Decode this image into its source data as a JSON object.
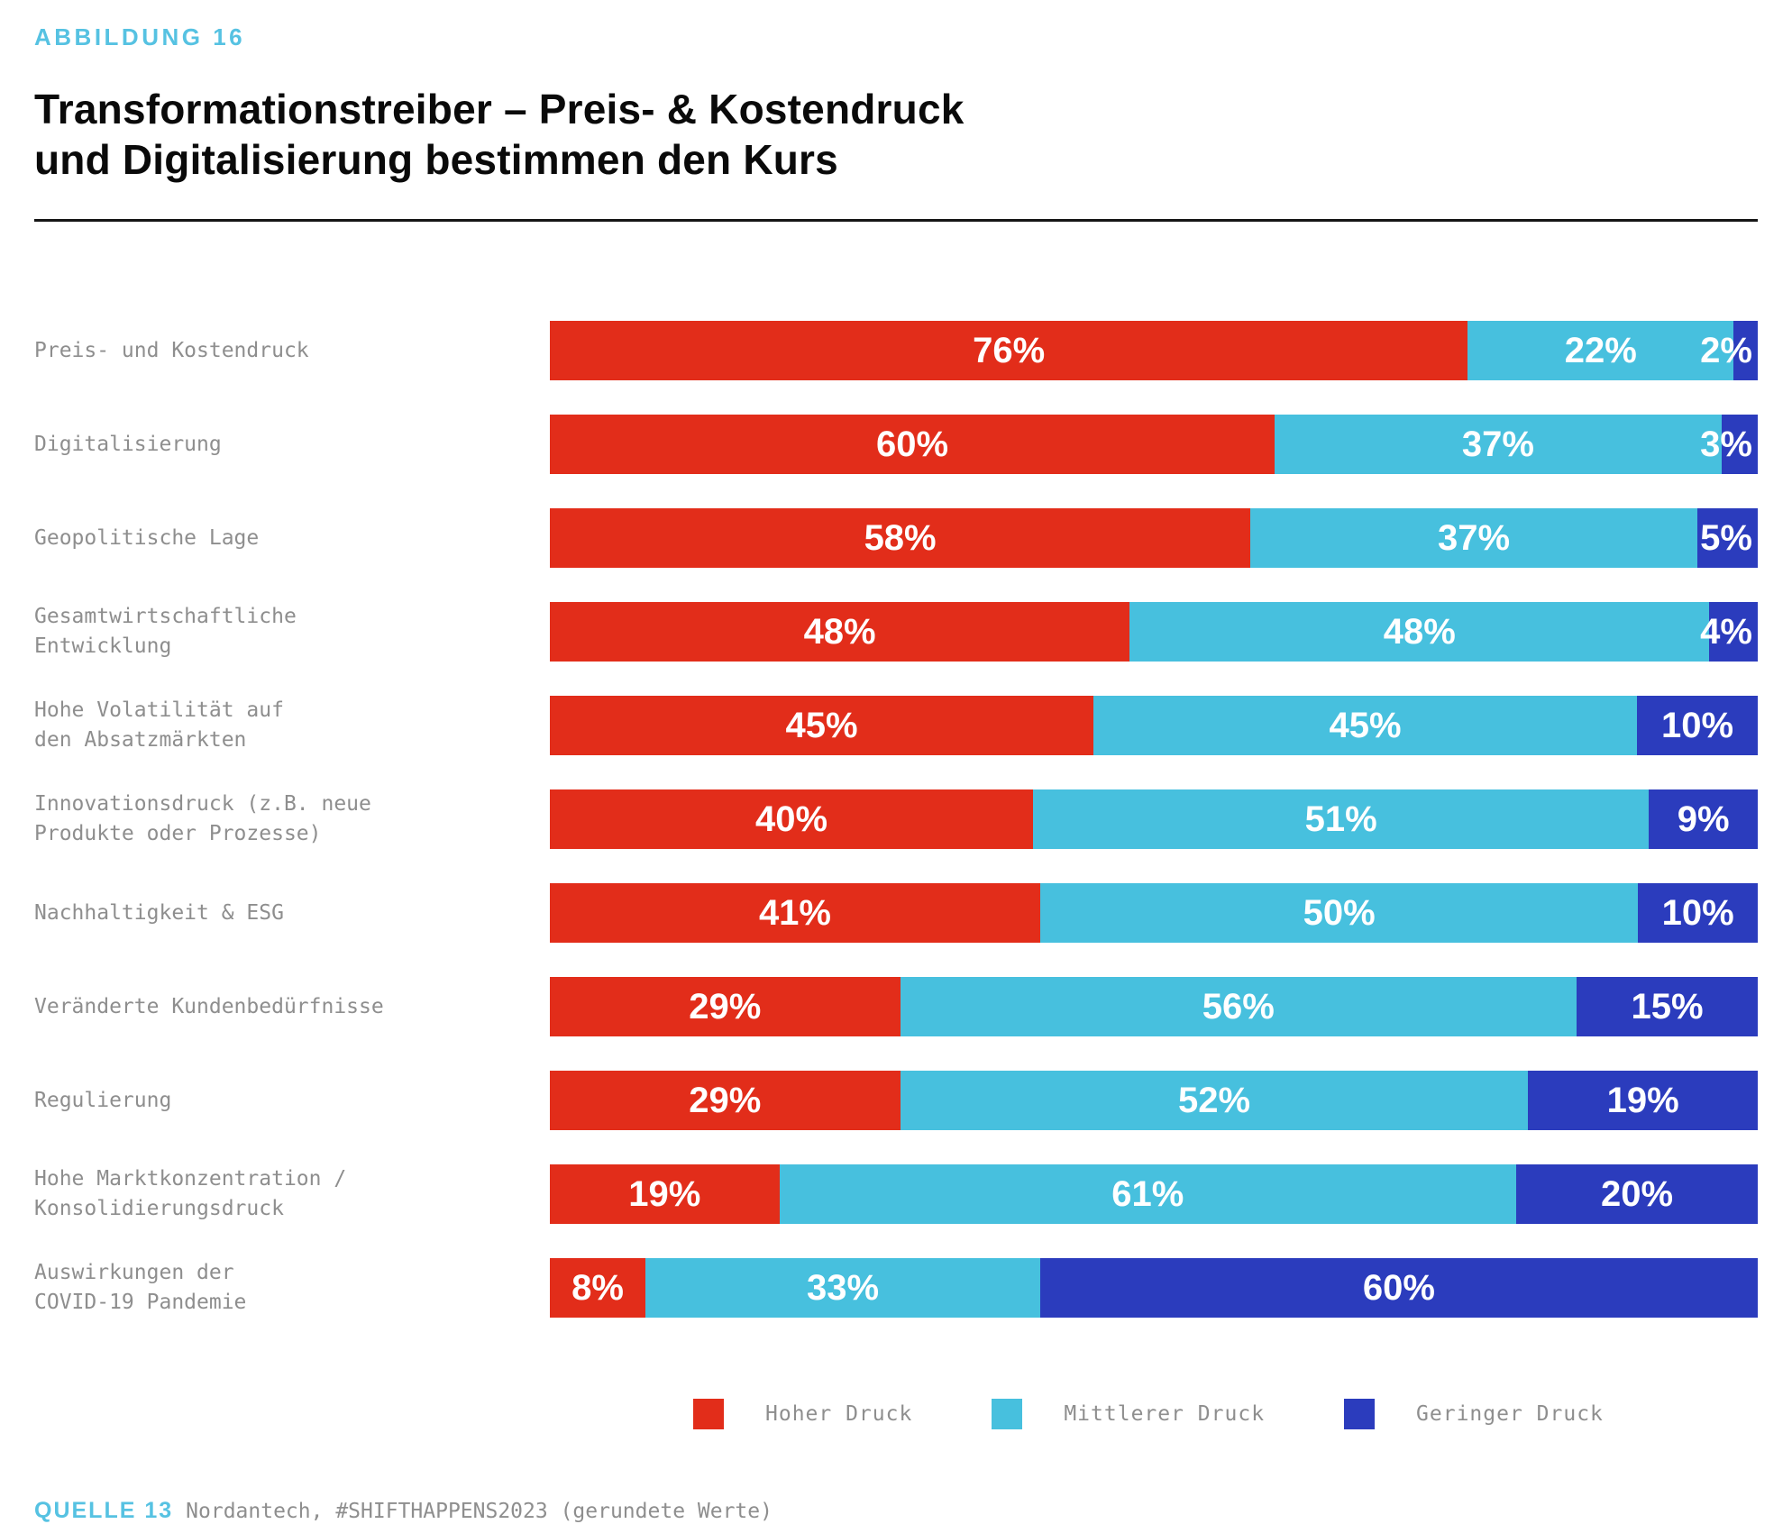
{
  "header": {
    "eyebrow": "ABBILDUNG 16",
    "title_line1": "Transformationstreiber – Preis- & Kostendruck",
    "title_line2": "und Digitalisierung bestimmen den Kurs"
  },
  "colors": {
    "high": "#E22D1A",
    "medium": "#47C0DE",
    "low": "#2B3CBD",
    "accent_cyan": "#56C2E2",
    "label_gray": "#8E8E8E"
  },
  "chart_data": {
    "type": "bar",
    "orientation": "horizontal-stacked",
    "title": "Transformationstreiber – Preis- & Kostendruck und Digitalisierung bestimmen den Kurs",
    "xlim": [
      0,
      100
    ],
    "value_suffix": "%",
    "grid": false,
    "legend_position": "bottom",
    "note": "gerundete Werte",
    "categories": [
      [
        "Preis- und Kostendruck"
      ],
      [
        "Digitalisierung"
      ],
      [
        "Geopolitische Lage"
      ],
      [
        "Gesamtwirtschaftliche",
        "Entwicklung"
      ],
      [
        "Hohe Volatilität auf",
        "den Absatzmärkten"
      ],
      [
        "Innovationsdruck (z.B. neue",
        "Produkte oder Prozesse)"
      ],
      [
        "Nachhaltigkeit & ESG"
      ],
      [
        "Veränderte Kundenbedürfnisse"
      ],
      [
        "Regulierung"
      ],
      [
        "Hohe Marktkonzentration /",
        "Konsolidierungsdruck"
      ],
      [
        "Auswirkungen der",
        "COVID-19 Pandemie"
      ]
    ],
    "series": [
      {
        "name": "Hoher Druck",
        "color_key": "high",
        "values": [
          76,
          60,
          58,
          48,
          45,
          40,
          41,
          29,
          29,
          19,
          8
        ]
      },
      {
        "name": "Mittlerer Druck",
        "color_key": "medium",
        "values": [
          22,
          37,
          37,
          48,
          45,
          51,
          50,
          56,
          52,
          61,
          33
        ]
      },
      {
        "name": "Geringer Druck",
        "color_key": "low",
        "values": [
          2,
          3,
          5,
          4,
          10,
          9,
          10,
          15,
          19,
          20,
          60
        ]
      }
    ]
  },
  "footer": {
    "source_label": "QUELLE 13",
    "source_text": "Nordantech, #SHIFTHAPPENS2023 (gerundete Werte)"
  }
}
